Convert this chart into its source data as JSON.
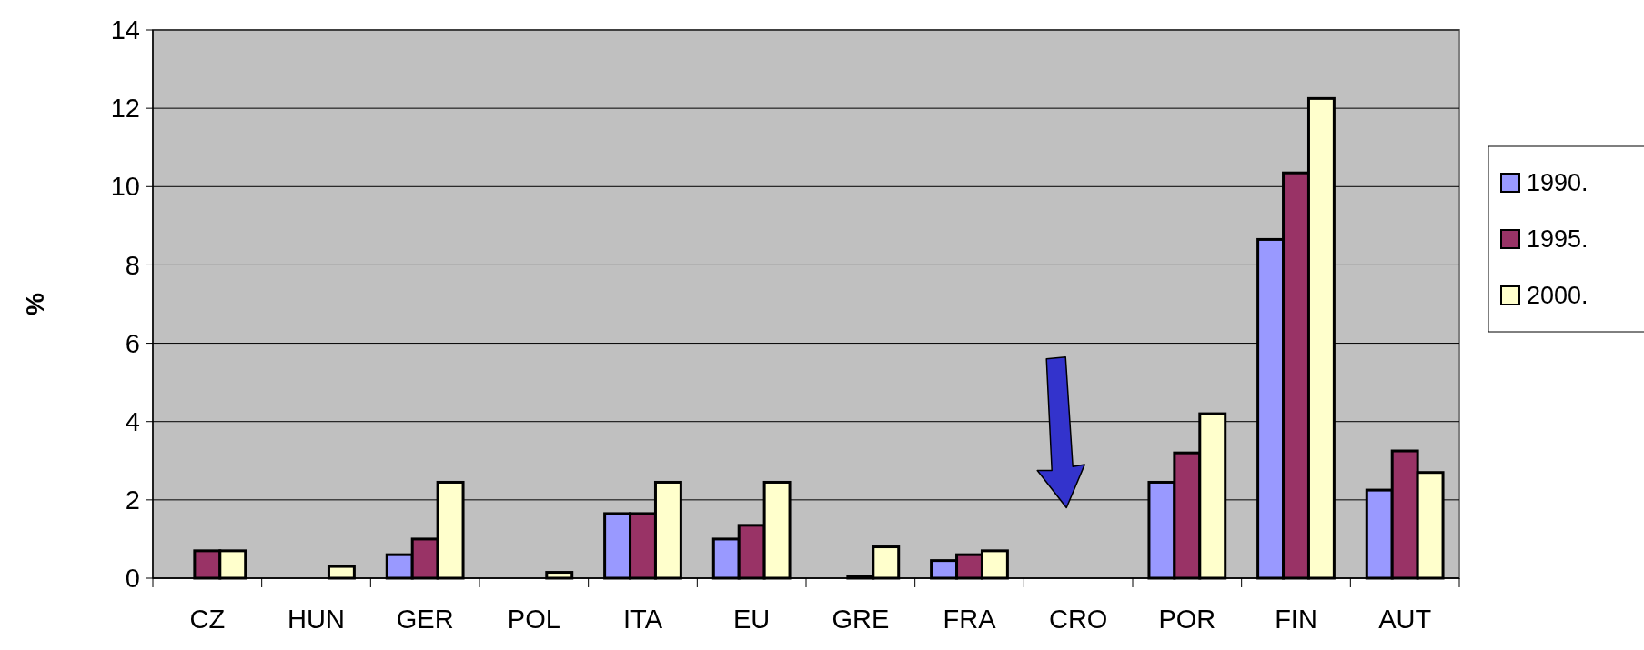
{
  "chart_data": {
    "type": "bar",
    "ylabel": "%",
    "categories": [
      "CZ",
      "HUN",
      "GER",
      "POL",
      "ITA",
      "EU",
      "GRE",
      "FRA",
      "CRO",
      "POR",
      "FIN",
      "AUT"
    ],
    "series": [
      {
        "name": "1990.",
        "color": "#9999ff",
        "values": [
          0,
          0,
          0.6,
          0,
          1.65,
          1.0,
          0,
          0.45,
          0,
          2.45,
          8.65,
          2.25
        ]
      },
      {
        "name": "1995.",
        "color": "#993366",
        "values": [
          0.7,
          0,
          1.0,
          0,
          1.65,
          1.35,
          0.05,
          0.6,
          0,
          3.2,
          10.35,
          3.25
        ]
      },
      {
        "name": "2000.",
        "color": "#ffffcc",
        "values": [
          0.7,
          0.3,
          2.45,
          0.15,
          2.45,
          2.45,
          0.8,
          0.7,
          0,
          4.2,
          12.25,
          2.7
        ]
      }
    ],
    "ylim": [
      0,
      14
    ],
    "yticks": [
      0,
      2,
      4,
      6,
      8,
      10,
      12,
      14
    ],
    "grid": "y",
    "legend": "right"
  }
}
